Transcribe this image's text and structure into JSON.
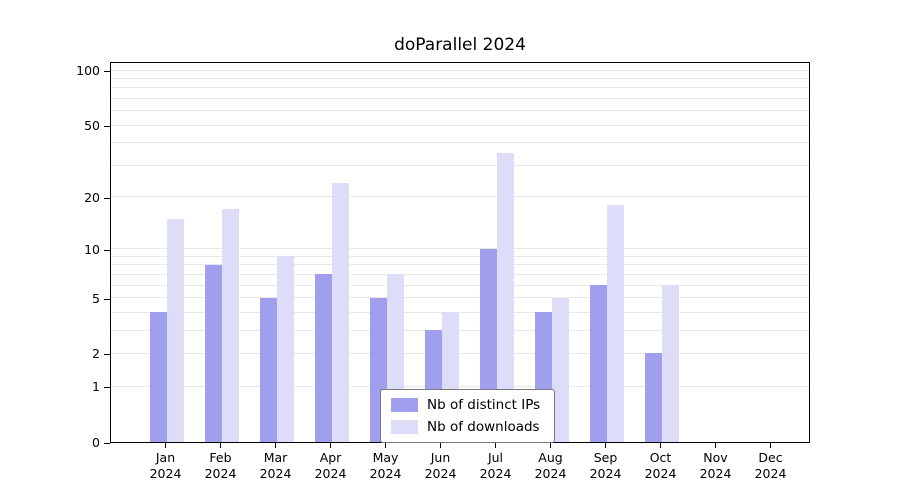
{
  "title": "doParallel 2024",
  "chart_data": {
    "type": "bar",
    "title": "doParallel 2024",
    "scale": "log10(value+1)",
    "months": [
      "Jan",
      "Feb",
      "Mar",
      "Apr",
      "May",
      "Jun",
      "Jul",
      "Aug",
      "Sep",
      "Oct",
      "Nov",
      "Dec"
    ],
    "year": "2024",
    "series": [
      {
        "name": "Nb of distinct IPs",
        "color": "#9f9fee",
        "values": [
          4,
          8,
          5,
          7,
          5,
          3,
          10,
          4,
          6,
          2,
          0,
          0
        ]
      },
      {
        "name": "Nb of downloads",
        "color": "#ddddfa",
        "values": [
          15,
          17,
          9,
          24,
          7,
          4,
          35,
          5,
          18,
          6,
          0,
          0
        ]
      }
    ],
    "yticks": [
      0,
      1,
      2,
      5,
      10,
      20,
      50,
      100
    ],
    "ylim": [
      0,
      100
    ],
    "grid_values": [
      1,
      2,
      3,
      4,
      5,
      6,
      7,
      8,
      9,
      10,
      20,
      30,
      40,
      50,
      60,
      70,
      80,
      90,
      100
    ],
    "legend_position": "bottom-center",
    "grid": true
  },
  "colors": {
    "bar_distinct_ips": "#9f9fee",
    "bar_downloads": "#ddddfa",
    "gridline": "#e8e8e8",
    "axis": "#000000",
    "background": "#ffffff"
  }
}
